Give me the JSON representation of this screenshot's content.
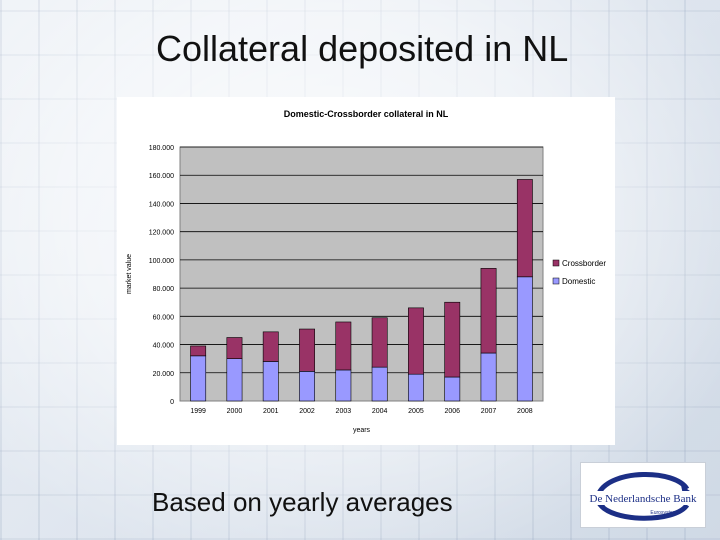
{
  "slide": {
    "title": "Collateral deposited in NL",
    "footer": "Based on yearly averages"
  },
  "logo": {
    "name": "De Nederlandsche Bank",
    "tagline": "Eurosysteem",
    "colors": {
      "navy": "#1c2f86",
      "arrows": "#1c2f86"
    }
  },
  "chart_data": {
    "type": "bar",
    "stacked": true,
    "title": "Domestic-Crossborder collateral in NL",
    "xlabel": "years",
    "ylabel": "market value",
    "ylim": [
      0,
      180000
    ],
    "yticks": [
      "0",
      "20.000",
      "40.000",
      "60.000",
      "80.000",
      "100.000",
      "120.000",
      "140.000",
      "160.000",
      "180.000"
    ],
    "grid": "horizontal major lines",
    "legend": "right",
    "categories": [
      "1999",
      "2000",
      "2001",
      "2002",
      "2003",
      "2004",
      "2005",
      "2006",
      "2007",
      "2008"
    ],
    "series": [
      {
        "name": "Domestic",
        "color": "#9999ff",
        "values": [
          32000,
          30000,
          28000,
          21000,
          22000,
          24000,
          19000,
          17000,
          34000,
          88000
        ]
      },
      {
        "name": "Crossborder",
        "color": "#993366",
        "values": [
          7000,
          15000,
          21000,
          30000,
          34000,
          35000,
          47000,
          53000,
          60000,
          69000
        ]
      }
    ]
  }
}
